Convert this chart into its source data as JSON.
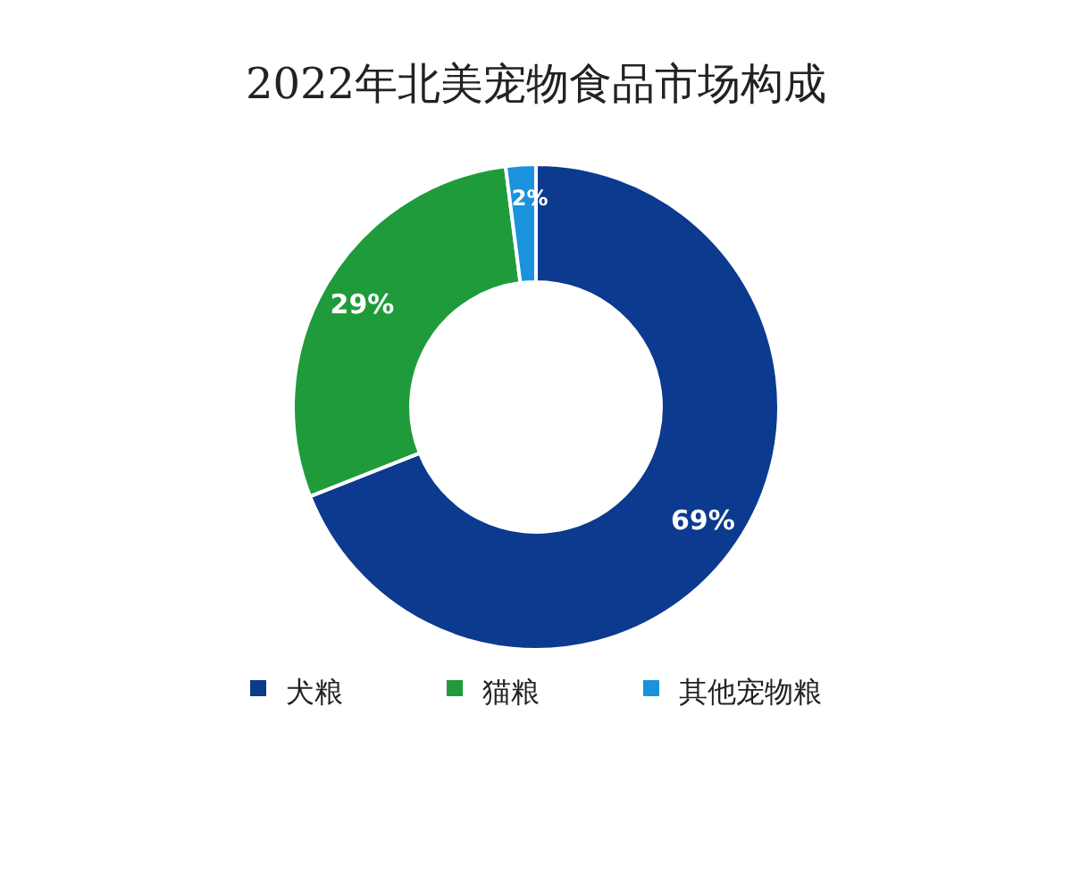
{
  "chart_data": {
    "type": "donut",
    "title": "2022年北美宠物食品市场构成",
    "categories": [
      "犬粮",
      "猫粮",
      "其他宠物粮"
    ],
    "values": [
      69,
      29,
      2
    ],
    "colors": [
      "#0b3a8e",
      "#1f9b3b",
      "#1b92dc"
    ],
    "value_labels": [
      "69%",
      "29%",
      "2%"
    ],
    "legend": "bottom"
  }
}
